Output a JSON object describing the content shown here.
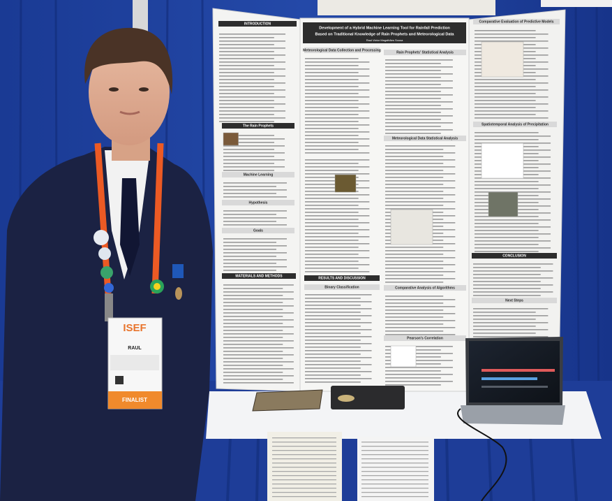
{
  "poster": {
    "title_lines": [
      "Development of a Hybrid Machine Learning Tool for Rainfall Prediction",
      "Based on Traditional Knowledge of Rain Prophets and Meteorological Data"
    ],
    "author": "Raul Victor Magalhães Sousa",
    "sections": [
      "INTRODUCTION",
      "The Rain Prophets",
      "Machine Learning",
      "Hypothesis",
      "Goals",
      "MATERIALS AND METHODS",
      "Meteorological Data Collection and Processing",
      "RESULTS AND DISCUSSION",
      "Binary Classification",
      "Rain Prophets' Statistical Analysis",
      "Meteorological Data Statistical Analysis",
      "Comparative Analysis of Algorithms",
      "Pearson's Correlation",
      "Comparative Evaluation of Predictive Models",
      "Spatiotemporal Analysis of Precipitation",
      "CONCLUSION",
      "Next Steps"
    ]
  },
  "badge": {
    "event": "ISEF",
    "name": "RAUL",
    "status": "FINALIST"
  }
}
